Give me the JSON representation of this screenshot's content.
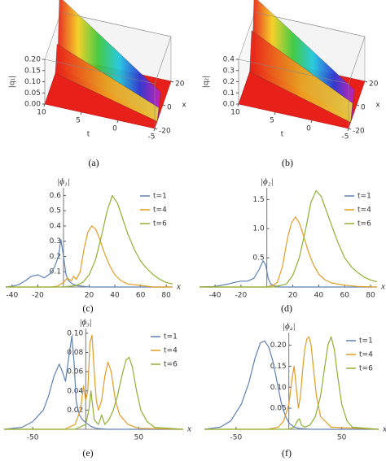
{
  "chart_data": [
    {
      "type": "surface3d",
      "caption": "(a)",
      "z_label": "|q₁|",
      "x_label": "x",
      "t_label": "t",
      "xlim": [
        -20,
        20
      ],
      "xticks": [
        -20,
        0,
        20
      ],
      "tlim": [
        -5,
        10
      ],
      "tticks": [
        10,
        5,
        0,
        -5
      ],
      "zlim": [
        0,
        0.2
      ],
      "zticks": [
        {
          "value": 0,
          "label": "0.00"
        },
        0.05,
        {
          "value": 0.1,
          "label": "0.10"
        },
        0.15,
        {
          "value": 0.2,
          "label": "0.20"
        }
      ]
    },
    {
      "type": "surface3d",
      "caption": "(b)",
      "z_label": "|q₂|",
      "x_label": "x",
      "t_label": "t",
      "xlim": [
        -20,
        20
      ],
      "xticks": [
        -20,
        0,
        20
      ],
      "tlim": [
        -5,
        10
      ],
      "tticks": [
        10,
        5,
        0,
        -5
      ],
      "zlim": [
        0,
        0.4
      ],
      "zticks": [
        {
          "value": 0,
          "label": "0.0"
        },
        0.1,
        0.2,
        0.3,
        0.4
      ]
    },
    {
      "type": "line",
      "caption": "(c)",
      "y_label": "|ϕ₁|",
      "x_label": "x",
      "legend": "upper right",
      "xlim": [
        -45,
        85
      ],
      "xticks": [
        -40,
        -20,
        20,
        40,
        60,
        80
      ],
      "ylim": [
        0,
        0.65
      ],
      "yticks": [
        0.1,
        0.2,
        0.3,
        0.4,
        0.5,
        0.6
      ],
      "series": [
        {
          "name": "t=1",
          "color": "#5e81b5",
          "x": [
            -45,
            -40,
            -35,
            -30,
            -25,
            -20,
            -15,
            -10,
            -7,
            -4,
            -2,
            0,
            2,
            4,
            7,
            10,
            15,
            20,
            30,
            40,
            60,
            85
          ],
          "values": [
            0,
            0.005,
            0.015,
            0.04,
            0.07,
            0.08,
            0.06,
            0.09,
            0.13,
            0.2,
            0.31,
            0.2,
            0.08,
            0.04,
            0.02,
            0.01,
            0.005,
            0,
            0,
            0,
            0,
            0
          ]
        },
        {
          "name": "t=4",
          "color": "#e19c24",
          "x": [
            -45,
            -20,
            -10,
            -5,
            0,
            3,
            6,
            8,
            10,
            13,
            16,
            19,
            22,
            25,
            28,
            32,
            36,
            40,
            45,
            50,
            60,
            70,
            85
          ],
          "values": [
            0,
            0,
            0,
            0.005,
            0.03,
            0.06,
            0.04,
            0.07,
            0.05,
            0.1,
            0.25,
            0.36,
            0.4,
            0.38,
            0.32,
            0.22,
            0.14,
            0.08,
            0.04,
            0.02,
            0.01,
            0,
            0
          ]
        },
        {
          "name": "t=6",
          "color": "#8fb032",
          "x": [
            -45,
            0,
            10,
            15,
            20,
            25,
            30,
            34,
            38,
            42,
            46,
            50,
            55,
            60,
            65,
            70,
            75,
            80,
            85
          ],
          "values": [
            0,
            0,
            0.01,
            0.03,
            0.08,
            0.18,
            0.35,
            0.5,
            0.6,
            0.55,
            0.45,
            0.35,
            0.25,
            0.17,
            0.12,
            0.08,
            0.05,
            0.03,
            0.02
          ]
        }
      ]
    },
    {
      "type": "line",
      "caption": "(d)",
      "y_label": "|ϕ₂|",
      "x_label": "x",
      "legend": "upper right",
      "xlim": [
        -52,
        85
      ],
      "xticks": [
        -40,
        -20,
        20,
        40,
        60,
        80
      ],
      "ylim": [
        0,
        1.7
      ],
      "yticks": [
        0.5,
        {
          "value": 1,
          "label": "1.0"
        },
        1.5
      ],
      "series": [
        {
          "name": "t=1",
          "color": "#5e81b5",
          "x": [
            -52,
            -40,
            -30,
            -25,
            -20,
            -15,
            -10,
            -6,
            -3,
            -1,
            1,
            3,
            6,
            10,
            20,
            85
          ],
          "values": [
            0,
            0.01,
            0.05,
            0.08,
            0.1,
            0.1,
            0.15,
            0.3,
            0.45,
            0.38,
            0.15,
            0.05,
            0.02,
            0,
            0,
            0
          ]
        },
        {
          "name": "t=4",
          "color": "#e19c24",
          "x": [
            -52,
            0,
            5,
            8,
            12,
            16,
            19,
            22,
            25,
            28,
            32,
            36,
            40,
            45,
            50,
            60,
            70,
            85
          ],
          "values": [
            0,
            0,
            0.03,
            0.08,
            0.35,
            0.85,
            1.1,
            1.2,
            1.1,
            0.9,
            0.6,
            0.38,
            0.22,
            0.12,
            0.07,
            0.03,
            0.01,
            0
          ]
        },
        {
          "name": "t=6",
          "color": "#8fb032",
          "x": [
            -52,
            5,
            15,
            20,
            25,
            30,
            34,
            38,
            42,
            46,
            50,
            55,
            60,
            65,
            70,
            75,
            80,
            85
          ],
          "values": [
            0,
            0,
            0.05,
            0.2,
            0.5,
            1.0,
            1.45,
            1.65,
            1.55,
            1.3,
            1.05,
            0.75,
            0.5,
            0.35,
            0.25,
            0.17,
            0.12,
            0.09
          ]
        }
      ]
    },
    {
      "type": "line",
      "caption": "(e)",
      "y_label": "|ϕ₃|",
      "x_label": "x",
      "legend": "upper right",
      "xlim": [
        -77,
        92
      ],
      "xticks": [
        -50,
        50
      ],
      "ylim": [
        0,
        0.105
      ],
      "yticks": [
        0.02,
        0.04,
        0.06,
        0.08,
        {
          "value": 0.1,
          "label": "0.10"
        }
      ],
      "series": [
        {
          "name": "t=1",
          "color": "#5e81b5",
          "x": [
            -77,
            -60,
            -50,
            -40,
            -35,
            -30,
            -25,
            -22,
            -19,
            -16,
            -13,
            -11,
            -9,
            -6,
            -3,
            0,
            5,
            10,
            20,
            92
          ],
          "values": [
            0,
            0.002,
            0.008,
            0.02,
            0.035,
            0.055,
            0.068,
            0.06,
            0.05,
            0.075,
            0.097,
            0.07,
            0.03,
            0.015,
            0.01,
            0.007,
            0.003,
            0.001,
            0,
            0
          ]
        },
        {
          "name": "t=4",
          "color": "#e19c24",
          "x": [
            -77,
            -20,
            -10,
            -5,
            -2,
            0,
            2,
            4,
            6,
            8,
            10,
            12,
            15,
            18,
            21,
            24,
            28,
            32,
            40,
            50,
            92
          ],
          "values": [
            0,
            0,
            0.005,
            0.02,
            0.045,
            0.03,
            0.04,
            0.09,
            0.098,
            0.06,
            0.03,
            0.02,
            0.03,
            0.055,
            0.07,
            0.06,
            0.03,
            0.015,
            0.005,
            0.001,
            0
          ]
        },
        {
          "name": "t=6",
          "color": "#8fb032",
          "x": [
            -77,
            -10,
            0,
            3,
            5,
            8,
            12,
            15,
            18,
            22,
            26,
            30,
            34,
            38,
            41,
            44,
            48,
            52,
            58,
            65,
            92
          ],
          "values": [
            0,
            0,
            0.005,
            0.02,
            0.04,
            0.01,
            0.005,
            0.015,
            0.005,
            0.01,
            0.02,
            0.035,
            0.055,
            0.072,
            0.075,
            0.065,
            0.04,
            0.02,
            0.008,
            0.002,
            0
          ]
        }
      ]
    },
    {
      "type": "line",
      "caption": "(f)",
      "y_label": "|ϕ₄|",
      "x_label": "x",
      "legend": "upper right",
      "xlim": [
        -80,
        85
      ],
      "xticks": [
        -50,
        50
      ],
      "ylim": [
        0,
        0.23
      ],
      "yticks": [
        0.05,
        {
          "value": 0.1,
          "label": "0.10"
        },
        0.15,
        {
          "value": 0.2,
          "label": "0.20"
        }
      ],
      "series": [
        {
          "name": "t=1",
          "color": "#5e81b5",
          "x": [
            -80,
            -65,
            -55,
            -45,
            -38,
            -32,
            -27,
            -23,
            -19,
            -15,
            -11,
            -7,
            -3,
            0,
            5,
            10,
            20,
            85
          ],
          "values": [
            0,
            0.005,
            0.02,
            0.06,
            0.11,
            0.17,
            0.205,
            0.21,
            0.195,
            0.16,
            0.11,
            0.06,
            0.03,
            0.015,
            0.005,
            0.002,
            0,
            0
          ]
        },
        {
          "name": "t=4",
          "color": "#e19c24",
          "x": [
            -80,
            -20,
            -10,
            -5,
            0,
            3,
            5,
            7,
            9,
            11,
            13,
            15,
            17,
            19,
            21,
            23,
            26,
            30,
            40,
            85
          ],
          "values": [
            0,
            0,
            0.005,
            0.02,
            0.06,
            0.12,
            0.15,
            0.1,
            0.05,
            0.08,
            0.14,
            0.19,
            0.215,
            0.22,
            0.2,
            0.15,
            0.08,
            0.03,
            0.005,
            0
          ]
        },
        {
          "name": "t=6",
          "color": "#8fb032",
          "x": [
            -80,
            0,
            5,
            8,
            10,
            12,
            15,
            20,
            25,
            30,
            34,
            37,
            40,
            43,
            46,
            50,
            55,
            60,
            85
          ],
          "values": [
            0,
            0,
            0.005,
            0.02,
            0.025,
            0.01,
            0.005,
            0.01,
            0.03,
            0.08,
            0.15,
            0.2,
            0.22,
            0.19,
            0.13,
            0.06,
            0.02,
            0.005,
            0
          ]
        }
      ]
    }
  ]
}
